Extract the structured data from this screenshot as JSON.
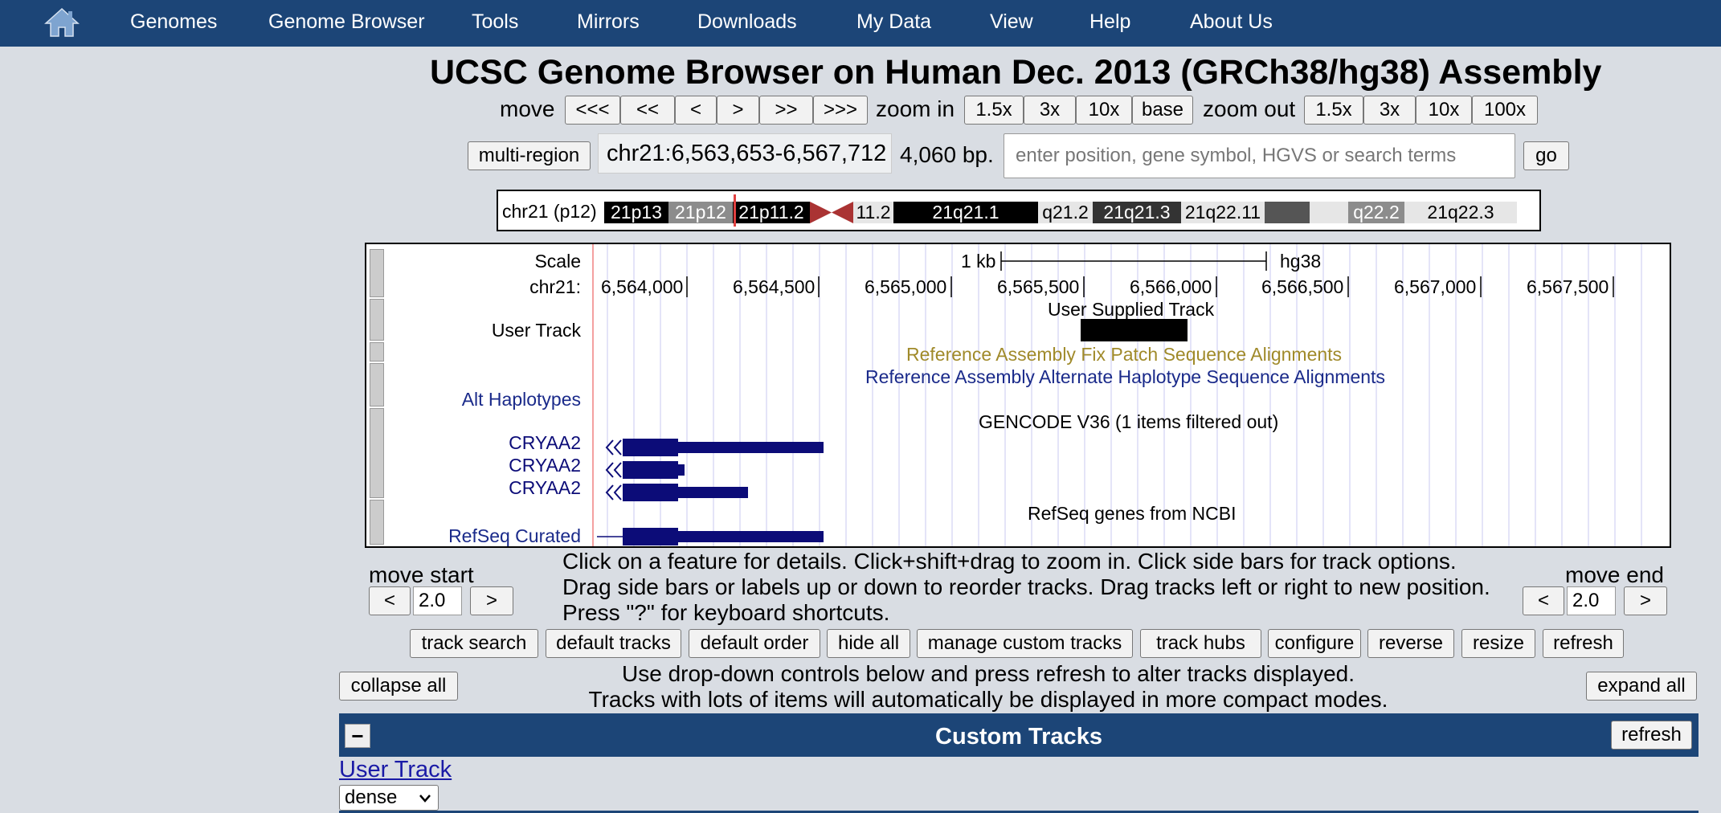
{
  "nav": {
    "home_icon": "home-icon",
    "items": [
      "Genomes",
      "Genome Browser",
      "Tools",
      "Mirrors",
      "Downloads",
      "My Data",
      "View",
      "Help",
      "About Us"
    ]
  },
  "title": "UCSC Genome Browser on Human Dec. 2013 (GRCh38/hg38) Assembly",
  "move_controls": {
    "move_label": "move",
    "move_buttons": [
      "<<<",
      "<<",
      "<",
      ">",
      ">>",
      ">>>"
    ],
    "zoom_in_label": "zoom in",
    "zoom_in_buttons": [
      "1.5x",
      "3x",
      "10x",
      "base"
    ],
    "zoom_out_label": "zoom out",
    "zoom_out_buttons": [
      "1.5x",
      "3x",
      "10x",
      "100x"
    ]
  },
  "position": {
    "multi_region_label": "multi-region",
    "position_text": "chr21:6,563,653-6,567,712",
    "bp_text": "4,060 bp.",
    "search_placeholder": "enter position, gene symbol, HGVS or search terms",
    "go_label": "go"
  },
  "ideogram": {
    "chrom_label": "chr21 (p12)",
    "bands": [
      "21p13",
      "21p12",
      "21p11.2",
      "11.2",
      "21q21.1",
      "q21.2",
      "21q21.3",
      "21q22.11",
      "q22.2",
      "21q22.3"
    ]
  },
  "tracks": {
    "scale_label": "Scale",
    "scale_bar_text": "1 kb",
    "assembly": "hg38",
    "chrom_label": "chr21:",
    "ruler_ticks": [
      "6,564,000",
      "6,564,500",
      "6,565,000",
      "6,565,500",
      "6,566,000",
      "6,566,500",
      "6,567,000",
      "6,567,500"
    ],
    "user_track_title": "User Supplied Track",
    "user_track_label": "User Track",
    "fix_patch_title": "Reference Assembly Fix Patch Sequence Alignments",
    "alt_title": "Reference Assembly Alternate Haplotype Sequence Alignments",
    "alt_label": "Alt Haplotypes",
    "gencode_title": "GENCODE V36 (1 items filtered out)",
    "gene_names": [
      "CRYAA2",
      "CRYAA2",
      "CRYAA2"
    ],
    "refseq_title": "RefSeq genes from NCBI",
    "refseq_label": "RefSeq Curated",
    "colors": {
      "fix_patch": "#a08a2a",
      "alt": "#1a2a8a",
      "gene": "#0c0c78",
      "highlight": "#e04040"
    }
  },
  "move_start": {
    "label": "move start",
    "left": "<",
    "value": "2.0",
    "right": ">"
  },
  "move_end": {
    "label": "move end",
    "left": "<",
    "value": "2.0",
    "right": ">"
  },
  "instructions": "Click on a feature for details. Click+shift+drag to zoom in. Click side bars for track options. Drag side bars or labels up or down to reorder tracks. Drag tracks left or right to new position. Press \"?\" for keyboard shortcuts.",
  "track_buttons": [
    "track search",
    "default tracks",
    "default order",
    "hide all",
    "manage custom tracks",
    "track hubs",
    "configure",
    "reverse",
    "resize",
    "refresh"
  ],
  "collapse_all": "collapse all",
  "expand_all": "expand all",
  "note_line1": "Use drop-down controls below and press refresh to alter tracks displayed.",
  "note_line2": "Tracks with lots of items will automatically be displayed in more compact modes.",
  "custom_tracks": {
    "minus": "−",
    "title": "Custom Tracks",
    "refresh": "refresh",
    "user_track_link": "User Track",
    "visibility": "dense"
  }
}
